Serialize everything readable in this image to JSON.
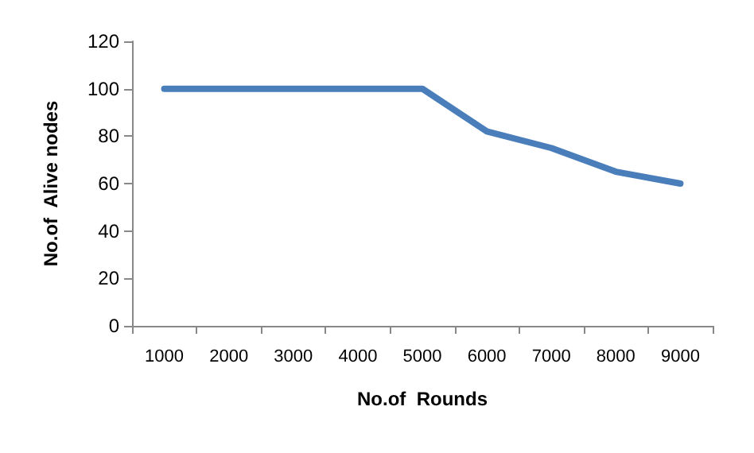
{
  "chart_data": {
    "type": "line",
    "xlabel": "No.of  Rounds",
    "ylabel": "No.of  Alive nodes",
    "categories": [
      "1000",
      "2000",
      "3000",
      "4000",
      "5000",
      "6000",
      "7000",
      "8000",
      "9000"
    ],
    "series": [
      {
        "color": "#4a7ebb",
        "values": [
          100,
          100,
          100,
          100,
          100,
          82,
          75,
          65,
          60
        ]
      }
    ],
    "ylim": [
      0,
      120
    ],
    "yticks": [
      0,
      20,
      40,
      60,
      80,
      100,
      120
    ],
    "marker": "none",
    "line_style": "solid"
  }
}
